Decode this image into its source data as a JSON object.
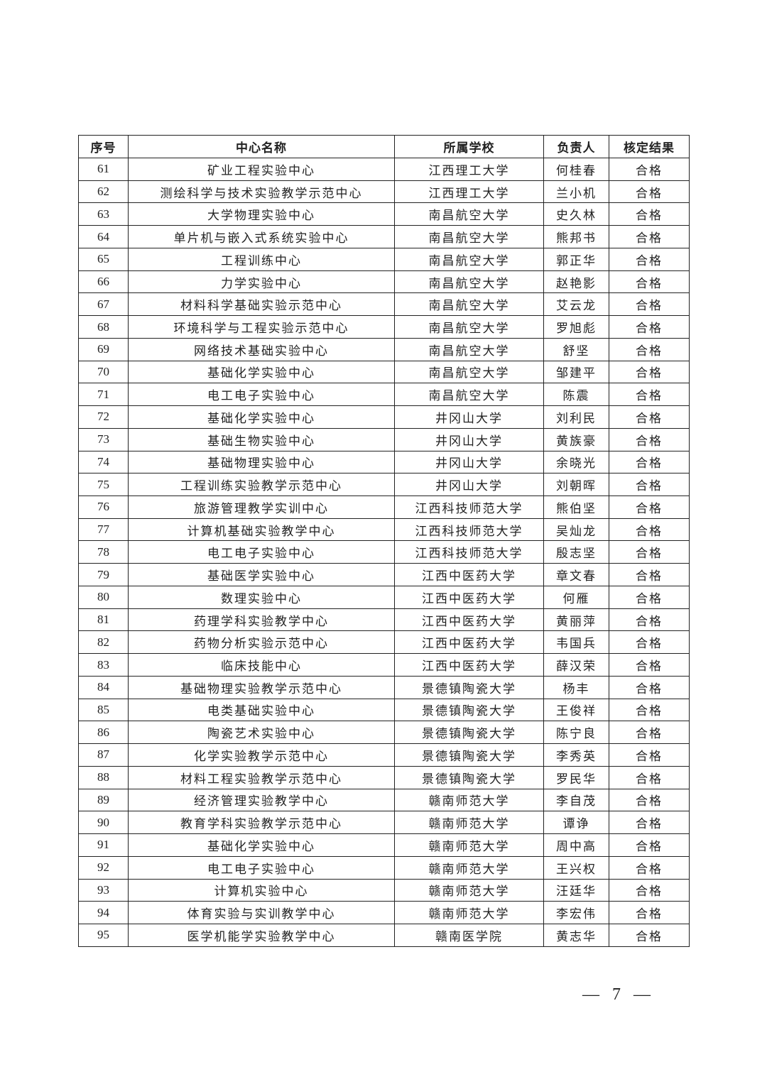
{
  "headers": [
    "序号",
    "中心名称",
    "所属学校",
    "负责人",
    "核定结果"
  ],
  "rows": [
    [
      "61",
      "矿业工程实验中心",
      "江西理工大学",
      "何桂春",
      "合格"
    ],
    [
      "62",
      "测绘科学与技术实验教学示范中心",
      "江西理工大学",
      "兰小机",
      "合格"
    ],
    [
      "63",
      "大学物理实验中心",
      "南昌航空大学",
      "史久林",
      "合格"
    ],
    [
      "64",
      "单片机与嵌入式系统实验中心",
      "南昌航空大学",
      "熊邦书",
      "合格"
    ],
    [
      "65",
      "工程训练中心",
      "南昌航空大学",
      "郭正华",
      "合格"
    ],
    [
      "66",
      "力学实验中心",
      "南昌航空大学",
      "赵艳影",
      "合格"
    ],
    [
      "67",
      "材料科学基础实验示范中心",
      "南昌航空大学",
      "艾云龙",
      "合格"
    ],
    [
      "68",
      "环境科学与工程实验示范中心",
      "南昌航空大学",
      "罗旭彪",
      "合格"
    ],
    [
      "69",
      "网络技术基础实验中心",
      "南昌航空大学",
      "舒坚",
      "合格"
    ],
    [
      "70",
      "基础化学实验中心",
      "南昌航空大学",
      "邹建平",
      "合格"
    ],
    [
      "71",
      "电工电子实验中心",
      "南昌航空大学",
      "陈震",
      "合格"
    ],
    [
      "72",
      "基础化学实验中心",
      "井冈山大学",
      "刘利民",
      "合格"
    ],
    [
      "73",
      "基础生物实验中心",
      "井冈山大学",
      "黄族豪",
      "合格"
    ],
    [
      "74",
      "基础物理实验中心",
      "井冈山大学",
      "余晓光",
      "合格"
    ],
    [
      "75",
      "工程训练实验教学示范中心",
      "井冈山大学",
      "刘朝晖",
      "合格"
    ],
    [
      "76",
      "旅游管理教学实训中心",
      "江西科技师范大学",
      "熊伯坚",
      "合格"
    ],
    [
      "77",
      "计算机基础实验教学中心",
      "江西科技师范大学",
      "吴灿龙",
      "合格"
    ],
    [
      "78",
      "电工电子实验中心",
      "江西科技师范大学",
      "殷志坚",
      "合格"
    ],
    [
      "79",
      "基础医学实验中心",
      "江西中医药大学",
      "章文春",
      "合格"
    ],
    [
      "80",
      "数理实验中心",
      "江西中医药大学",
      "何雁",
      "合格"
    ],
    [
      "81",
      "药理学科实验教学中心",
      "江西中医药大学",
      "黄丽萍",
      "合格"
    ],
    [
      "82",
      "药物分析实验示范中心",
      "江西中医药大学",
      "韦国兵",
      "合格"
    ],
    [
      "83",
      "临床技能中心",
      "江西中医药大学",
      "薛汉荣",
      "合格"
    ],
    [
      "84",
      "基础物理实验教学示范中心",
      "景德镇陶瓷大学",
      "杨丰",
      "合格"
    ],
    [
      "85",
      "电类基础实验中心",
      "景德镇陶瓷大学",
      "王俊祥",
      "合格"
    ],
    [
      "86",
      "陶瓷艺术实验中心",
      "景德镇陶瓷大学",
      "陈宁良",
      "合格"
    ],
    [
      "87",
      "化学实验教学示范中心",
      "景德镇陶瓷大学",
      "李秀英",
      "合格"
    ],
    [
      "88",
      "材料工程实验教学示范中心",
      "景德镇陶瓷大学",
      "罗民华",
      "合格"
    ],
    [
      "89",
      "经济管理实验教学中心",
      "赣南师范大学",
      "李自茂",
      "合格"
    ],
    [
      "90",
      "教育学科实验教学示范中心",
      "赣南师范大学",
      "谭诤",
      "合格"
    ],
    [
      "91",
      "基础化学实验中心",
      "赣南师范大学",
      "周中高",
      "合格"
    ],
    [
      "92",
      "电工电子实验中心",
      "赣南师范大学",
      "王兴权",
      "合格"
    ],
    [
      "93",
      "计算机实验中心",
      "赣南师范大学",
      "汪廷华",
      "合格"
    ],
    [
      "94",
      "体育实验与实训教学中心",
      "赣南师范大学",
      "李宏伟",
      "合格"
    ],
    [
      "95",
      "医学机能学实验教学中心",
      "赣南医学院",
      "黄志华",
      "合格"
    ]
  ],
  "page_number": "— 7 —"
}
